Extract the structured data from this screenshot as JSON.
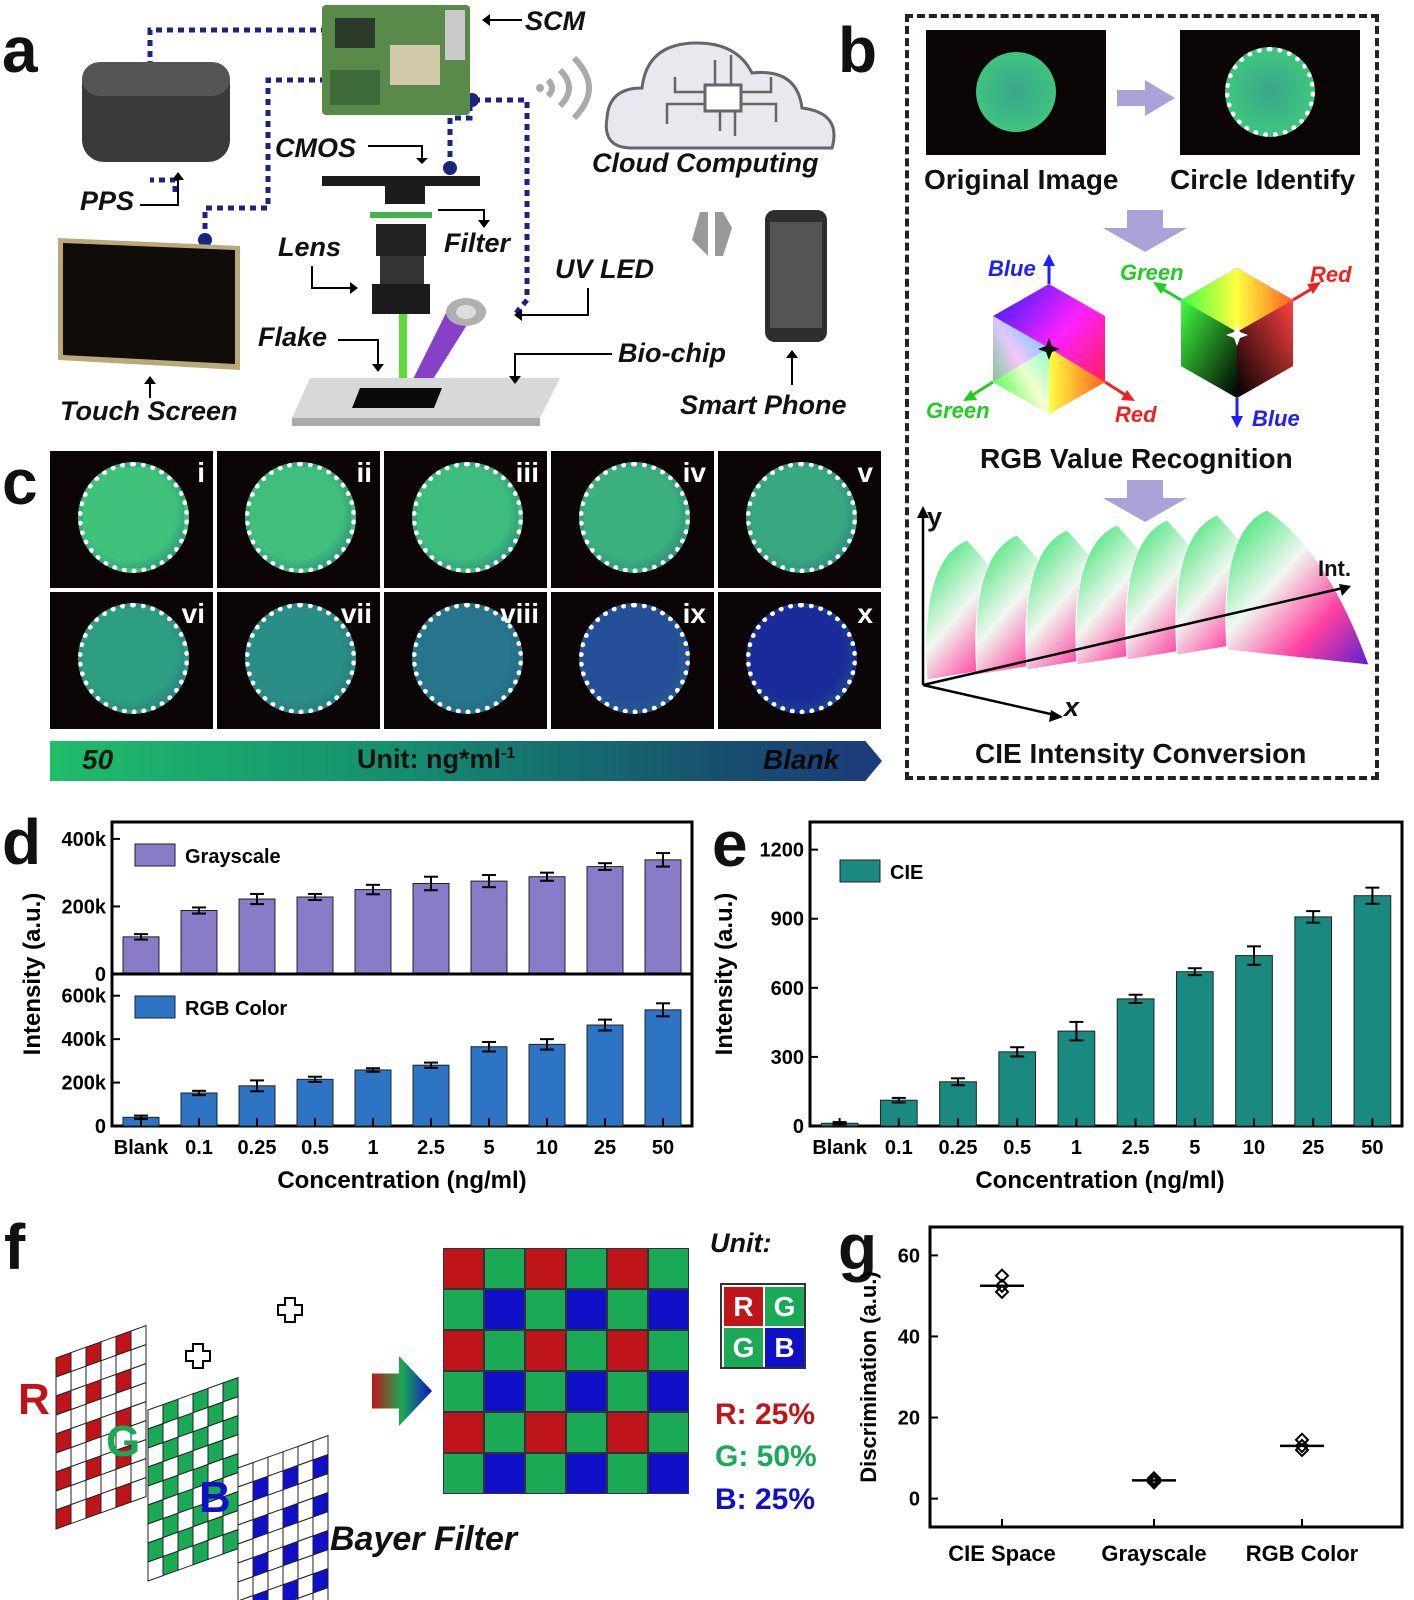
{
  "panels": {
    "a": "a",
    "b": "b",
    "c": "c",
    "d": "d",
    "e": "e",
    "f": "f",
    "g": "g"
  },
  "panel_a": {
    "labels": {
      "scm": "SCM",
      "pps": "PPS",
      "cmos": "CMOS",
      "filter": "Filter",
      "lens": "Lens",
      "uv_led": "UV LED",
      "flake": "Flake",
      "bio_chip": "Bio-chip",
      "touch_screen": "Touch Screen",
      "cloud": "Cloud Computing",
      "phone": "Smart Phone"
    }
  },
  "panel_b": {
    "original": "Original Image",
    "circle": "Circle Identify",
    "rgb_title": "RGB Value Recognition",
    "cube1": {
      "top": "Blue",
      "left": "Green",
      "right": "Red"
    },
    "cube2": {
      "left": "Green",
      "right": "Red",
      "bottom": "Blue"
    },
    "cie_title": "CIE Intensity Conversion",
    "axis_y": "y",
    "axis_x": "x",
    "axis_int": "Int."
  },
  "panel_c": {
    "numerals": [
      "i",
      "ii",
      "iii",
      "iv",
      "v",
      "vi",
      "vii",
      "viii",
      "ix",
      "x"
    ],
    "disk_colors": [
      "#3fc37a",
      "#3fbe7c",
      "#3cbc7d",
      "#3bb07e",
      "#38a880",
      "#2e9e83",
      "#2b8e86",
      "#26758d",
      "#254f99",
      "#1a2a9a"
    ],
    "bar_left": "50",
    "bar_mid": "Unit: ng*ml",
    "bar_sup": "-1",
    "bar_right": "Blank"
  },
  "panel_d": {
    "ylabel": "Intensity (a.u.)",
    "xlabel": "Concentration (ng/ml)",
    "top_ticks": [
      "400k",
      "200k",
      "0"
    ],
    "bottom_ticks": [
      "600k",
      "400k",
      "200k",
      "0"
    ]
  },
  "panel_e": {
    "ylabel": "Intensity (a.u.)",
    "xlabel": "Concentration (ng/ml)",
    "ticks": [
      "1200",
      "900",
      "600",
      "300",
      "0"
    ]
  },
  "panel_f": {
    "r": "R",
    "g": "G",
    "b": "B",
    "title": "Bayer Filter",
    "unit": "Unit:",
    "unit_cells": [
      "R",
      "G",
      "G",
      "B"
    ],
    "pct_r": "R: 25%",
    "pct_g": "G: 50%",
    "pct_b": "B: 25%"
  },
  "panel_g": {
    "ylabel": "Discrimination (a.u.)",
    "ticks": [
      "60",
      "40",
      "20",
      "0"
    ]
  },
  "colors": {
    "purple": "#8a7bc8",
    "blue": "#2d74c4",
    "teal": "#1a8a80",
    "red": "#c0141b",
    "green": "#1aaa55",
    "bayer_blue": "#1010c8",
    "dotted": "#1a237e",
    "arrow": "#a9a3d8"
  },
  "chart_data": [
    {
      "type": "bar",
      "categories": [
        "Blank",
        "0.1",
        "0.25",
        "0.5",
        "1",
        "2.5",
        "5",
        "10",
        "25",
        "50"
      ],
      "series": [
        {
          "name": "Grayscale",
          "values": [
            110000,
            188000,
            222000,
            228000,
            250000,
            268000,
            275000,
            288000,
            318000,
            338000
          ],
          "errors": [
            8000,
            9000,
            15000,
            9000,
            14000,
            20000,
            18000,
            12000,
            10000,
            20000
          ]
        }
      ],
      "ylim": [
        0,
        450000
      ],
      "ylabel": "Intensity (a.u.)",
      "xlabel": "Concentration (ng/ml)"
    },
    {
      "type": "bar",
      "categories": [
        "Blank",
        "0.1",
        "0.25",
        "0.5",
        "1",
        "2.5",
        "5",
        "10",
        "25",
        "50"
      ],
      "series": [
        {
          "name": "RGB Color",
          "values": [
            40000,
            152000,
            185000,
            215000,
            258000,
            280000,
            365000,
            376000,
            465000,
            535000
          ],
          "errors": [
            8000,
            10000,
            25000,
            12000,
            8000,
            12000,
            22000,
            24000,
            25000,
            30000
          ]
        }
      ],
      "ylim": [
        0,
        700000
      ],
      "ylabel": "Intensity (a.u.)",
      "xlabel": "Concentration (ng/ml)"
    },
    {
      "type": "bar",
      "categories": [
        "Blank",
        "0.1",
        "0.25",
        "0.5",
        "1",
        "2.5",
        "5",
        "10",
        "25",
        "50"
      ],
      "series": [
        {
          "name": "CIE",
          "values": [
            12,
            112,
            192,
            322,
            412,
            552,
            670,
            740,
            908,
            1000
          ],
          "errors": [
            5,
            10,
            15,
            20,
            40,
            18,
            15,
            40,
            25,
            35
          ]
        }
      ],
      "ylim": [
        0,
        1320
      ],
      "ylabel": "Intensity (a.u.)",
      "xlabel": "Concentration (ng/ml)"
    },
    {
      "type": "scatter",
      "categories": [
        "CIE Space",
        "Grayscale",
        "RGB Color"
      ],
      "points": [
        [
          55,
          52.5,
          51
        ],
        [
          5,
          4.5,
          4
        ],
        [
          14.5,
          13,
          12
        ]
      ],
      "means": [
        52.5,
        4.5,
        13
      ],
      "ylim": [
        -7,
        67
      ],
      "ylabel": "Discrimination (a.u.)"
    }
  ]
}
